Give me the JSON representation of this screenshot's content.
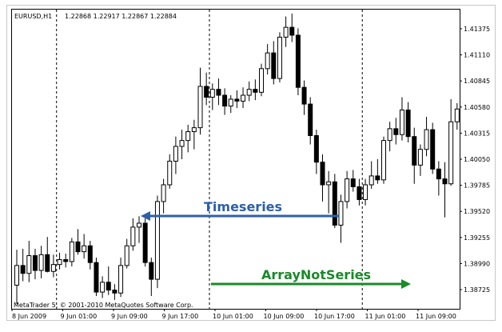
{
  "window": {
    "title": "EURUSD,H1",
    "ohlc": "1.22868 1.22917 1.22867 1.22884",
    "copyright": "MetaTrader 5, © 2001-2010 MetaQuotes Software Corp."
  },
  "annotations": {
    "timeseries": {
      "label": "Timeseries",
      "color": "#2e5fa8"
    },
    "array_not_series": {
      "label": "ArrayNotSeries",
      "color": "#1a8a2a"
    }
  },
  "chart_data": {
    "type": "candlestick",
    "symbol": "EURUSD",
    "timeframe": "H1",
    "y_ticks": [
      "1.41375",
      "1.41110",
      "1.40845",
      "1.40580",
      "1.40315",
      "1.40050",
      "1.39785",
      "1.39520",
      "1.39255",
      "1.38990",
      "1.38725"
    ],
    "x_ticks": [
      "8 Jun 2009",
      "9 Jun 01:00",
      "9 Jun 09:00",
      "9 Jun 17:00",
      "10 Jun 01:00",
      "10 Jun 09:00",
      "10 Jun 17:00",
      "11 Jun 01:00",
      "11 Jun 09:00"
    ],
    "ylim": [
      1.3853,
      1.4157
    ],
    "day_separators": [
      "9 Jun",
      "10 Jun",
      "11 Jun"
    ],
    "candles": [
      {
        "o": 1.3877,
        "h": 1.3913,
        "l": 1.3858,
        "c": 1.3897
      },
      {
        "o": 1.3897,
        "h": 1.3914,
        "l": 1.3881,
        "c": 1.3889
      },
      {
        "o": 1.3889,
        "h": 1.3922,
        "l": 1.388,
        "c": 1.3907
      },
      {
        "o": 1.3907,
        "h": 1.3914,
        "l": 1.3883,
        "c": 1.3892
      },
      {
        "o": 1.3892,
        "h": 1.3917,
        "l": 1.3884,
        "c": 1.3908
      },
      {
        "o": 1.3908,
        "h": 1.3926,
        "l": 1.389,
        "c": 1.3891
      },
      {
        "o": 1.3891,
        "h": 1.3908,
        "l": 1.3885,
        "c": 1.3898
      },
      {
        "o": 1.3898,
        "h": 1.391,
        "l": 1.3893,
        "c": 1.3903
      },
      {
        "o": 1.3903,
        "h": 1.3909,
        "l": 1.3895,
        "c": 1.3901
      },
      {
        "o": 1.3901,
        "h": 1.3925,
        "l": 1.3896,
        "c": 1.3921
      },
      {
        "o": 1.3921,
        "h": 1.3934,
        "l": 1.3908,
        "c": 1.3911
      },
      {
        "o": 1.3911,
        "h": 1.3929,
        "l": 1.3904,
        "c": 1.3917
      },
      {
        "o": 1.3917,
        "h": 1.3922,
        "l": 1.3893,
        "c": 1.39
      },
      {
        "o": 1.39,
        "h": 1.3905,
        "l": 1.3866,
        "c": 1.387
      },
      {
        "o": 1.387,
        "h": 1.3886,
        "l": 1.3864,
        "c": 1.388
      },
      {
        "o": 1.388,
        "h": 1.3896,
        "l": 1.3867,
        "c": 1.3872
      },
      {
        "o": 1.3872,
        "h": 1.3878,
        "l": 1.3862,
        "c": 1.3869
      },
      {
        "o": 1.3869,
        "h": 1.3905,
        "l": 1.3865,
        "c": 1.3897
      },
      {
        "o": 1.3897,
        "h": 1.3924,
        "l": 1.3894,
        "c": 1.3917
      },
      {
        "o": 1.3917,
        "h": 1.3945,
        "l": 1.3912,
        "c": 1.3936
      },
      {
        "o": 1.3936,
        "h": 1.3947,
        "l": 1.392,
        "c": 1.394
      },
      {
        "o": 1.394,
        "h": 1.3945,
        "l": 1.3896,
        "c": 1.39
      },
      {
        "o": 1.39,
        "h": 1.3905,
        "l": 1.3866,
        "c": 1.3883
      },
      {
        "o": 1.3883,
        "h": 1.3968,
        "l": 1.3874,
        "c": 1.3962
      },
      {
        "o": 1.3962,
        "h": 1.3985,
        "l": 1.395,
        "c": 1.3979
      },
      {
        "o": 1.3979,
        "h": 1.401,
        "l": 1.3975,
        "c": 1.4003
      },
      {
        "o": 1.4003,
        "h": 1.4028,
        "l": 1.399,
        "c": 1.4018
      },
      {
        "o": 1.4018,
        "h": 1.4035,
        "l": 1.4005,
        "c": 1.4024
      },
      {
        "o": 1.4024,
        "h": 1.404,
        "l": 1.4012,
        "c": 1.4033
      },
      {
        "o": 1.4033,
        "h": 1.4045,
        "l": 1.4015,
        "c": 1.4037
      },
      {
        "o": 1.4037,
        "h": 1.4098,
        "l": 1.403,
        "c": 1.4079
      },
      {
        "o": 1.4079,
        "h": 1.4093,
        "l": 1.406,
        "c": 1.4068
      },
      {
        "o": 1.4068,
        "h": 1.4082,
        "l": 1.4055,
        "c": 1.4076
      },
      {
        "o": 1.4076,
        "h": 1.4087,
        "l": 1.406,
        "c": 1.407
      },
      {
        "o": 1.407,
        "h": 1.4077,
        "l": 1.405,
        "c": 1.4059
      },
      {
        "o": 1.4059,
        "h": 1.407,
        "l": 1.4052,
        "c": 1.4066
      },
      {
        "o": 1.4066,
        "h": 1.4075,
        "l": 1.4057,
        "c": 1.4064
      },
      {
        "o": 1.4064,
        "h": 1.4078,
        "l": 1.4057,
        "c": 1.407
      },
      {
        "o": 1.407,
        "h": 1.4084,
        "l": 1.4064,
        "c": 1.4076
      },
      {
        "o": 1.4076,
        "h": 1.4086,
        "l": 1.4065,
        "c": 1.4073
      },
      {
        "o": 1.4073,
        "h": 1.4102,
        "l": 1.4069,
        "c": 1.4097
      },
      {
        "o": 1.4097,
        "h": 1.4122,
        "l": 1.4091,
        "c": 1.4113
      },
      {
        "o": 1.4113,
        "h": 1.4125,
        "l": 1.4081,
        "c": 1.4087
      },
      {
        "o": 1.4087,
        "h": 1.4134,
        "l": 1.4083,
        "c": 1.4129
      },
      {
        "o": 1.4129,
        "h": 1.415,
        "l": 1.4119,
        "c": 1.4139
      },
      {
        "o": 1.4139,
        "h": 1.4153,
        "l": 1.4124,
        "c": 1.4131
      },
      {
        "o": 1.4131,
        "h": 1.4138,
        "l": 1.407,
        "c": 1.4078
      },
      {
        "o": 1.4078,
        "h": 1.4085,
        "l": 1.405,
        "c": 1.4061
      },
      {
        "o": 1.4061,
        "h": 1.4068,
        "l": 1.402,
        "c": 1.4029
      },
      {
        "o": 1.4029,
        "h": 1.4035,
        "l": 1.399,
        "c": 1.4002
      },
      {
        "o": 1.4002,
        "h": 1.401,
        "l": 1.3962,
        "c": 1.3979
      },
      {
        "o": 1.3979,
        "h": 1.3993,
        "l": 1.395,
        "c": 1.3982
      },
      {
        "o": 1.3982,
        "h": 1.399,
        "l": 1.3935,
        "c": 1.3938
      },
      {
        "o": 1.3938,
        "h": 1.3969,
        "l": 1.392,
        "c": 1.3962
      },
      {
        "o": 1.3962,
        "h": 1.3993,
        "l": 1.3955,
        "c": 1.3985
      },
      {
        "o": 1.3985,
        "h": 1.3994,
        "l": 1.3972,
        "c": 1.3977
      },
      {
        "o": 1.3977,
        "h": 1.3985,
        "l": 1.3958,
        "c": 1.3964
      },
      {
        "o": 1.3964,
        "h": 1.3985,
        "l": 1.3958,
        "c": 1.3979
      },
      {
        "o": 1.3979,
        "h": 1.4003,
        "l": 1.3975,
        "c": 1.3988
      },
      {
        "o": 1.3988,
        "h": 1.4005,
        "l": 1.398,
        "c": 1.3984
      },
      {
        "o": 1.3984,
        "h": 1.4028,
        "l": 1.398,
        "c": 1.4024
      },
      {
        "o": 1.4024,
        "h": 1.4043,
        "l": 1.4013,
        "c": 1.4036
      },
      {
        "o": 1.4036,
        "h": 1.4047,
        "l": 1.402,
        "c": 1.403
      },
      {
        "o": 1.403,
        "h": 1.4068,
        "l": 1.4024,
        "c": 1.4055
      },
      {
        "o": 1.4055,
        "h": 1.4063,
        "l": 1.4022,
        "c": 1.4028
      },
      {
        "o": 1.4028,
        "h": 1.4037,
        "l": 1.398,
        "c": 1.3999
      },
      {
        "o": 1.3999,
        "h": 1.402,
        "l": 1.3988,
        "c": 1.4015
      },
      {
        "o": 1.4015,
        "h": 1.4048,
        "l": 1.4008,
        "c": 1.4035
      },
      {
        "o": 1.4035,
        "h": 1.4042,
        "l": 1.399,
        "c": 1.3995
      },
      {
        "o": 1.3995,
        "h": 1.4003,
        "l": 1.3968,
        "c": 1.3985
      },
      {
        "o": 1.3985,
        "h": 1.4002,
        "l": 1.3946,
        "c": 1.398
      },
      {
        "o": 1.398,
        "h": 1.4066,
        "l": 1.3978,
        "c": 1.4043
      },
      {
        "o": 1.4043,
        "h": 1.4062,
        "l": 1.4035,
        "c": 1.4056
      }
    ]
  }
}
